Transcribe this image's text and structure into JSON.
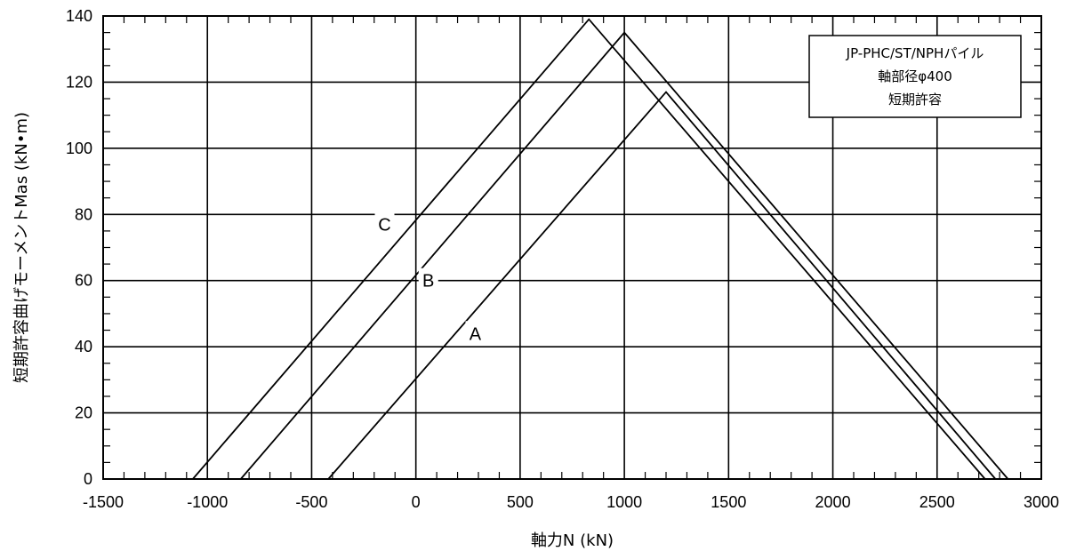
{
  "chart_data": {
    "type": "line",
    "xlabel": "軸力N (kN)",
    "ylabel": "短期許容曲げモーメントMas (kN•m)",
    "xlim": [
      -1500,
      3000
    ],
    "ylim": [
      0,
      140
    ],
    "x_ticks": [
      -1500,
      -1000,
      -500,
      0,
      500,
      1000,
      1500,
      2000,
      2500,
      3000
    ],
    "y_ticks": [
      0,
      20,
      40,
      60,
      80,
      100,
      120,
      140
    ],
    "grid": true,
    "legend_box": {
      "placement": "top-right",
      "lines": [
        "JP-PHC/ST/NPHパイル",
        "軸部径φ400",
        "短期許容"
      ]
    },
    "series": [
      {
        "name": "A",
        "x": [
          -420,
          1200,
          2780
        ],
        "y": [
          0,
          117,
          0
        ]
      },
      {
        "name": "B",
        "x": [
          -840,
          1000,
          2840
        ],
        "y": [
          0,
          135,
          0
        ]
      },
      {
        "name": "C",
        "x": [
          -1070,
          830,
          2730
        ],
        "y": [
          0,
          139,
          0
        ]
      }
    ],
    "series_labels": [
      {
        "text": "A",
        "x": 285,
        "y": 44
      },
      {
        "text": "B",
        "x": 60,
        "y": 60
      },
      {
        "text": "C",
        "x": -150,
        "y": 77
      }
    ]
  }
}
